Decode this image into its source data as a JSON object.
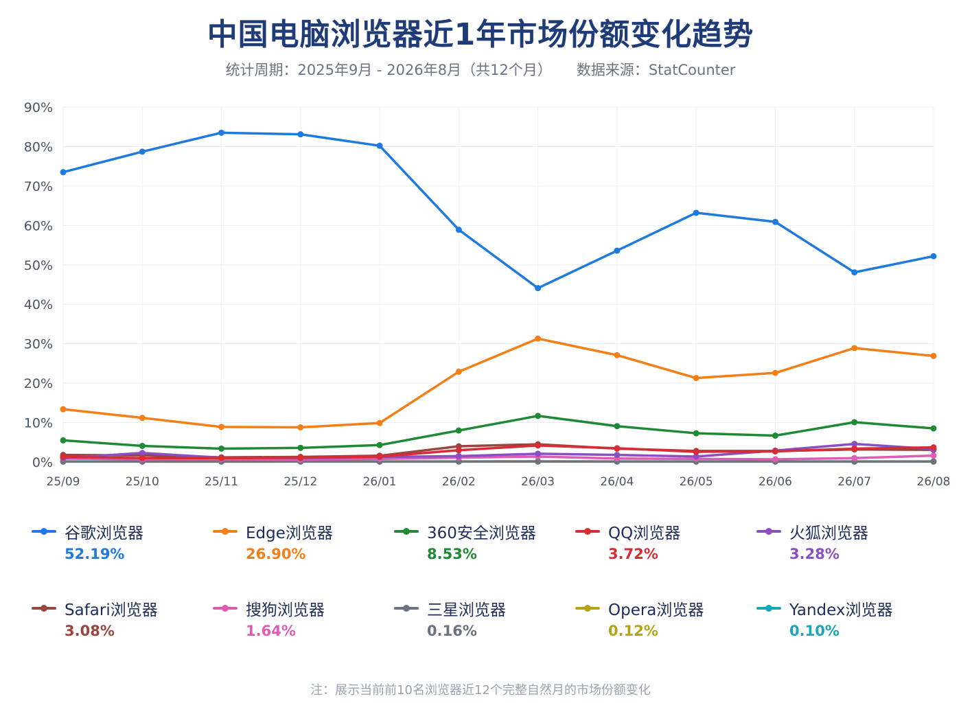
{
  "header": {
    "title": "中国电脑浏览器近1年市场份额变化趋势",
    "period": "统计周期：2025年9月 - 2026年8月（共12个月）",
    "source": "数据来源：StatCounter"
  },
  "footnote": "注：展示当前前10名浏览器近12个完整自然月的市场份额变化",
  "chart_data": {
    "type": "line",
    "title": "中国电脑浏览器近1年市场份额变化趋势",
    "x": [
      "25/09",
      "25/10",
      "25/11",
      "25/12",
      "26/01",
      "26/02",
      "26/03",
      "26/04",
      "26/05",
      "26/06",
      "26/07",
      "26/08"
    ],
    "yticks": [
      "0%",
      "10%",
      "20%",
      "30%",
      "40%",
      "50%",
      "60%",
      "70%",
      "80%",
      "90%"
    ],
    "ylim": [
      0,
      90
    ],
    "grid": true,
    "legend_position": "bottom",
    "series": [
      {
        "name": "谷歌浏览器",
        "color": "#1f7ade",
        "latest": "52.19%",
        "values": [
          73.5,
          78.7,
          83.5,
          83.1,
          80.2,
          58.9,
          44.1,
          53.6,
          63.2,
          60.9,
          48.1,
          52.19
        ]
      },
      {
        "name": "Edge浏览器",
        "color": "#f47f17",
        "latest": "26.90%",
        "values": [
          13.4,
          11.2,
          8.9,
          8.8,
          9.9,
          22.9,
          31.3,
          27.1,
          21.3,
          22.6,
          28.9,
          26.9
        ]
      },
      {
        "name": "360安全浏览器",
        "color": "#1f8a35",
        "latest": "8.53%",
        "values": [
          5.5,
          4.1,
          3.4,
          3.6,
          4.3,
          8.0,
          11.7,
          9.1,
          7.3,
          6.7,
          10.1,
          8.53
        ]
      },
      {
        "name": "QQ浏览器",
        "color": "#d62c35",
        "latest": "3.72%",
        "values": [
          1.3,
          1.0,
          1.0,
          1.1,
          1.4,
          3.0,
          4.2,
          3.5,
          2.6,
          2.7,
          3.4,
          3.72
        ]
      },
      {
        "name": "火狐浏览器",
        "color": "#8a4fc1",
        "latest": "3.28%",
        "values": [
          1.0,
          2.3,
          1.1,
          1.0,
          1.3,
          1.5,
          2.1,
          1.8,
          1.4,
          2.9,
          4.6,
          3.28
        ]
      },
      {
        "name": "Safari浏览器",
        "color": "#98463f",
        "latest": "3.08%",
        "values": [
          1.8,
          1.7,
          1.2,
          1.3,
          1.6,
          4.0,
          4.5,
          3.4,
          2.8,
          2.8,
          3.2,
          3.08
        ]
      },
      {
        "name": "搜狗浏览器",
        "color": "#df5cb4",
        "latest": "1.64%",
        "values": [
          0.9,
          0.7,
          0.7,
          0.6,
          0.8,
          1.1,
          1.4,
          0.9,
          0.8,
          0.7,
          1.0,
          1.64
        ]
      },
      {
        "name": "三星浏览器",
        "color": "#6b737f",
        "latest": "0.16%",
        "values": [
          0.15,
          0.16,
          0.15,
          0.15,
          0.16,
          0.16,
          0.17,
          0.16,
          0.16,
          0.16,
          0.16,
          0.16
        ]
      },
      {
        "name": "Opera浏览器",
        "color": "#b4a313",
        "latest": "0.12%",
        "values": [
          0.12,
          0.12,
          0.11,
          0.12,
          0.12,
          0.12,
          0.13,
          0.12,
          0.12,
          0.12,
          0.12,
          0.12
        ]
      },
      {
        "name": "Yandex浏览器",
        "color": "#1aa6b8",
        "latest": "0.10%",
        "values": [
          0.1,
          0.1,
          0.1,
          0.1,
          0.1,
          0.1,
          0.1,
          0.1,
          0.1,
          0.1,
          0.1,
          0.1
        ]
      }
    ]
  }
}
